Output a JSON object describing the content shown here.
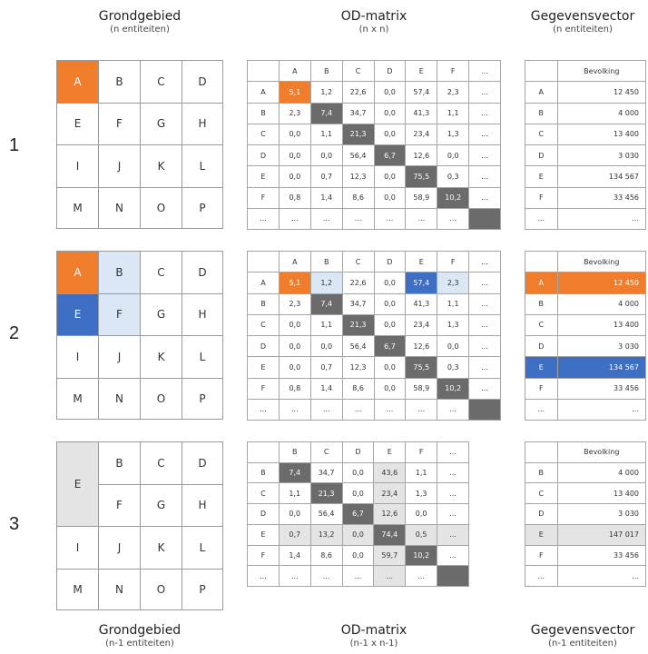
{
  "headers": {
    "top": {
      "area": {
        "title": "Grondgebied",
        "sub": "(n entiteiten)"
      },
      "matrix": {
        "title": "OD-matrix",
        "sub": "(n x n)"
      },
      "vector": {
        "title": "Gegevensvector",
        "sub": "(n entiteiten)"
      }
    },
    "bottom": {
      "area": {
        "title": "Grondgebied",
        "sub": "(n-1 entiteiten)"
      },
      "matrix": {
        "title": "OD-matrix",
        "sub": "(n-1 x n-1)"
      },
      "vector": {
        "title": "Gegevensvector",
        "sub": "(n-1 entiteiten)"
      }
    }
  },
  "colors": {
    "orange": "#ef7d2b",
    "blue": "#3e6fc4",
    "light_blue": "#dbe7f5",
    "dark_gray": "#6b6b6b",
    "light_gray": "#e4e4e4"
  },
  "step_labels": [
    "1",
    "2",
    "3"
  ],
  "grid_letters": [
    "A",
    "B",
    "C",
    "D",
    "E",
    "F",
    "G",
    "H",
    "I",
    "J",
    "K",
    "L",
    "M",
    "N",
    "O",
    "P"
  ],
  "merged_cell_label": "E",
  "matrix_full": {
    "cols": [
      "A",
      "B",
      "C",
      "D",
      "E",
      "F",
      "..."
    ],
    "rows": [
      {
        "label": "A",
        "values": [
          "5,1",
          "1,2",
          "22,6",
          "0,0",
          "57,4",
          "2,3",
          "..."
        ]
      },
      {
        "label": "B",
        "values": [
          "2,3",
          "7,4",
          "34,7",
          "0,0",
          "41,3",
          "1,1",
          "..."
        ]
      },
      {
        "label": "C",
        "values": [
          "0,0",
          "1,1",
          "21,3",
          "0,0",
          "23,4",
          "1,3",
          "..."
        ]
      },
      {
        "label": "D",
        "values": [
          "0,0",
          "0,0",
          "56,4",
          "6,7",
          "12,6",
          "0,0",
          "..."
        ]
      },
      {
        "label": "E",
        "values": [
          "0,0",
          "0,7",
          "12,3",
          "0,0",
          "75,5",
          "0,3",
          "..."
        ]
      },
      {
        "label": "F",
        "values": [
          "0,8",
          "1,4",
          "8,6",
          "0,0",
          "58,9",
          "10,2",
          "..."
        ]
      },
      {
        "label": "...",
        "values": [
          "...",
          "...",
          "...",
          "...",
          "...",
          "...",
          ""
        ]
      }
    ]
  },
  "matrix_reduced": {
    "cols": [
      "B",
      "C",
      "D",
      "E",
      "F",
      "..."
    ],
    "rows": [
      {
        "label": "B",
        "values": [
          "7,4",
          "34,7",
          "0,0",
          "43,6",
          "1,1",
          "..."
        ]
      },
      {
        "label": "C",
        "values": [
          "1,1",
          "21,3",
          "0,0",
          "23,4",
          "1,3",
          "..."
        ]
      },
      {
        "label": "D",
        "values": [
          "0,0",
          "56,4",
          "6,7",
          "12,6",
          "0,0",
          "..."
        ]
      },
      {
        "label": "E",
        "values": [
          "0,7",
          "13,2",
          "0,0",
          "74,4",
          "0,5",
          "..."
        ]
      },
      {
        "label": "F",
        "values": [
          "1,4",
          "8,6",
          "0,0",
          "59,7",
          "10,2",
          "..."
        ]
      },
      {
        "label": "...",
        "values": [
          "...",
          "...",
          "...",
          "...",
          "...",
          ""
        ]
      }
    ]
  },
  "vector_full": {
    "header": "Bevolking",
    "rows": [
      {
        "label": "A",
        "value": "12 450"
      },
      {
        "label": "B",
        "value": "4 000"
      },
      {
        "label": "C",
        "value": "13 400"
      },
      {
        "label": "D",
        "value": "3 030"
      },
      {
        "label": "E",
        "value": "134 567"
      },
      {
        "label": "F",
        "value": "33 456"
      },
      {
        "label": "...",
        "value": "..."
      }
    ]
  },
  "vector_reduced": {
    "header": "Bevolking",
    "rows": [
      {
        "label": "B",
        "value": "4 000"
      },
      {
        "label": "C",
        "value": "13 400"
      },
      {
        "label": "D",
        "value": "3 030"
      },
      {
        "label": "E",
        "value": "147 017"
      },
      {
        "label": "F",
        "value": "33 456"
      },
      {
        "label": "...",
        "value": "..."
      }
    ]
  }
}
